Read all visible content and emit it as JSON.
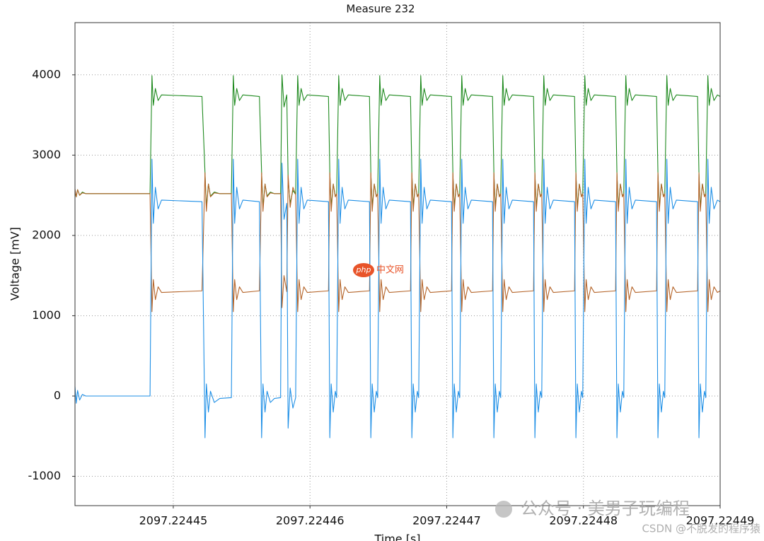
{
  "chart_data": {
    "type": "line",
    "title": "Measure 232",
    "x_label": "Time [s]",
    "y_label": "Voltage [mV]",
    "xlim": [
      2097.22444281,
      2097.22449
    ],
    "xticks": [
      2097.22445,
      2097.22446,
      2097.22447,
      2097.22448,
      2097.22449
    ],
    "ylim": [
      -1365,
      4650
    ],
    "yticks": [
      -1000,
      0,
      1000,
      2000,
      3000,
      4000
    ],
    "grid": true,
    "watermarks": [
      "php",
      "中文网",
      "公众号 · 美男子玩编程",
      "CSDN @不脱发的程序猿"
    ],
    "x": [
      2097.22444281,
      2097.2244429,
      2097.224443,
      2097.22444315,
      2097.22444335,
      2097.2244436,
      2097.2244483,
      2097.22444844,
      2097.22444854,
      2097.22444869,
      2097.22444889,
      2097.22444914,
      2097.2244521,
      2097.22445232,
      2097.22445242,
      2097.22445257,
      2097.22445272,
      2097.224453,
      2097.2244534,
      2097.22445425,
      2097.22445439,
      2097.22445449,
      2097.22445464,
      2097.22445484,
      2097.22445509,
      2097.2244563,
      2097.22445646,
      2097.22445656,
      2097.22445671,
      2097.22445686,
      2097.2244571,
      2097.2244574,
      2097.22445785,
      2097.22445795,
      2097.2244581,
      2097.2244583,
      2097.2244584,
      2097.22445855,
      2097.22445875,
      2097.22445895,
      2097.2244591,
      2097.2244592,
      2097.22445935,
      2097.22445955,
      2097.2244598,
      2097.22446135,
      2097.22446145,
      2097.22446155,
      2097.2244617,
      2097.22446185,
      2097.22446195,
      2097.2244621,
      2097.2244622,
      2097.22446235,
      2097.22446255,
      2097.2244628,
      2097.22446435,
      2097.22446445,
      2097.22446455,
      2097.2244647,
      2097.22446485,
      2097.22446495,
      2097.2244651,
      2097.2244652,
      2097.22446535,
      2097.22446555,
      2097.2244658,
      2097.22446735,
      2097.22446745,
      2097.22446755,
      2097.2244677,
      2097.22446785,
      2097.22446795,
      2097.2244681,
      2097.2244682,
      2097.22446835,
      2097.22446855,
      2097.2244688,
      2097.22447035,
      2097.22447045,
      2097.22447055,
      2097.2244707,
      2097.22447085,
      2097.22447095,
      2097.2244711,
      2097.2244712,
      2097.22447135,
      2097.22447155,
      2097.2244718,
      2097.22447335,
      2097.22447345,
      2097.22447355,
      2097.2244737,
      2097.22447385,
      2097.22447395,
      2097.2244741,
      2097.2244742,
      2097.22447435,
      2097.22447455,
      2097.2244748,
      2097.22447635,
      2097.22447645,
      2097.22447655,
      2097.2244767,
      2097.22447685,
      2097.22447695,
      2097.2244771,
      2097.2244772,
      2097.22447735,
      2097.22447755,
      2097.2244778,
      2097.22447935,
      2097.22447945,
      2097.22447955,
      2097.2244797,
      2097.22447985,
      2097.22447995,
      2097.2244801,
      2097.2244802,
      2097.22448035,
      2097.22448055,
      2097.2244808,
      2097.22448235,
      2097.22448245,
      2097.22448255,
      2097.2244827,
      2097.22448285,
      2097.22448295,
      2097.2244831,
      2097.2244832,
      2097.22448335,
      2097.22448355,
      2097.2244838,
      2097.22448535,
      2097.22448545,
      2097.22448555,
      2097.2244857,
      2097.22448585,
      2097.22448595,
      2097.2244861,
      2097.2244862,
      2097.22448635,
      2097.22448655,
      2097.2244868,
      2097.22448835,
      2097.22448845,
      2097.22448855,
      2097.2244887,
      2097.22448885,
      2097.22448895,
      2097.2244891,
      2097.2244892,
      2097.22448935,
      2097.22448955,
      2097.2244898,
      2097.22449
    ],
    "series": [
      {
        "color": "#1f8a1f",
        "values": [
          2540,
          2480,
          2570,
          2500,
          2540,
          2520,
          2520,
          3990,
          3620,
          3830,
          3680,
          3750,
          3730,
          2780,
          2350,
          2640,
          2490,
          2540,
          2520,
          2520,
          3990,
          3620,
          3830,
          3680,
          3750,
          3730,
          2780,
          2350,
          2640,
          2490,
          2540,
          2520,
          2520,
          4000,
          3600,
          3750,
          2700,
          2400,
          2560,
          2510,
          3990,
          3620,
          3830,
          3680,
          3750,
          3730,
          2780,
          2350,
          2640,
          2490,
          2520,
          3990,
          3620,
          3830,
          3680,
          3750,
          3730,
          2780,
          2350,
          2640,
          2490,
          2520,
          3990,
          3620,
          3830,
          3680,
          3750,
          3730,
          2780,
          2350,
          2640,
          2490,
          2520,
          3990,
          3620,
          3830,
          3680,
          3750,
          3730,
          2780,
          2350,
          2640,
          2490,
          2520,
          3990,
          3620,
          3830,
          3680,
          3750,
          3730,
          2780,
          2350,
          2640,
          2490,
          2520,
          3990,
          3620,
          3830,
          3680,
          3750,
          3730,
          2780,
          2350,
          2640,
          2490,
          2520,
          3990,
          3620,
          3830,
          3680,
          3750,
          3730,
          2780,
          2350,
          2640,
          2490,
          2520,
          3990,
          3620,
          3830,
          3680,
          3750,
          3730,
          2780,
          2350,
          2640,
          2490,
          2520,
          3990,
          3620,
          3830,
          3680,
          3750,
          3730,
          2780,
          2350,
          2640,
          2490,
          2520,
          3990,
          3620,
          3830,
          3680,
          3750,
          3730,
          2780,
          2350,
          2640,
          2490,
          2520,
          3990,
          3620,
          3830,
          3680,
          3750,
          3730
        ]
      },
      {
        "color": "#b5652a",
        "values": [
          2580,
          2480,
          2570,
          2500,
          2530,
          2520,
          2520,
          1050,
          1450,
          1200,
          1360,
          1290,
          1310,
          2780,
          2300,
          2640,
          2480,
          2530,
          2520,
          2520,
          1050,
          1450,
          1200,
          1360,
          1290,
          1310,
          2780,
          2300,
          2640,
          2480,
          2530,
          2520,
          2520,
          1100,
          1500,
          1300,
          2750,
          2350,
          2600,
          2510,
          1050,
          1450,
          1200,
          1360,
          1290,
          1310,
          2780,
          2300,
          2640,
          2480,
          2520,
          1050,
          1450,
          1200,
          1360,
          1290,
          1310,
          2780,
          2300,
          2640,
          2480,
          2520,
          1050,
          1450,
          1200,
          1360,
          1290,
          1310,
          2780,
          2300,
          2640,
          2480,
          2520,
          1050,
          1450,
          1200,
          1360,
          1290,
          1310,
          2780,
          2300,
          2640,
          2480,
          2520,
          1050,
          1450,
          1200,
          1360,
          1290,
          1310,
          2780,
          2300,
          2640,
          2480,
          2520,
          1050,
          1450,
          1200,
          1360,
          1290,
          1310,
          2780,
          2300,
          2640,
          2480,
          2520,
          1050,
          1450,
          1200,
          1360,
          1290,
          1310,
          2780,
          2300,
          2640,
          2480,
          2520,
          1050,
          1450,
          1200,
          1360,
          1290,
          1310,
          2780,
          2300,
          2640,
          2480,
          2520,
          1050,
          1450,
          1200,
          1360,
          1290,
          1310,
          2780,
          2300,
          2640,
          2480,
          2520,
          1050,
          1450,
          1200,
          1360,
          1290,
          1310,
          2780,
          2300,
          2640,
          2480,
          2520,
          1050,
          1450,
          1200,
          1360,
          1290,
          1310
        ]
      },
      {
        "color": "#1e8fe6",
        "values": [
          120,
          -90,
          70,
          -50,
          20,
          0,
          0,
          2950,
          2150,
          2600,
          2330,
          2440,
          2420,
          -520,
          150,
          -200,
          60,
          -80,
          -30,
          -20,
          2950,
          2150,
          2600,
          2330,
          2440,
          2420,
          -520,
          150,
          -200,
          60,
          -80,
          -30,
          -20,
          2900,
          2200,
          2400,
          -400,
          100,
          -150,
          -20,
          2950,
          2150,
          2600,
          2330,
          2440,
          2420,
          -520,
          150,
          -200,
          60,
          -20,
          2950,
          2150,
          2600,
          2330,
          2440,
          2420,
          -520,
          150,
          -200,
          60,
          -20,
          2950,
          2150,
          2600,
          2330,
          2440,
          2420,
          -520,
          150,
          -200,
          60,
          -20,
          2950,
          2150,
          2600,
          2330,
          2440,
          2420,
          -520,
          150,
          -200,
          60,
          -20,
          2950,
          2150,
          2600,
          2330,
          2440,
          2420,
          -520,
          150,
          -200,
          60,
          -20,
          2950,
          2150,
          2600,
          2330,
          2440,
          2420,
          -520,
          150,
          -200,
          60,
          -20,
          2950,
          2150,
          2600,
          2330,
          2440,
          2420,
          -520,
          150,
          -200,
          60,
          -20,
          2950,
          2150,
          2600,
          2330,
          2440,
          2420,
          -520,
          150,
          -200,
          60,
          -20,
          2950,
          2150,
          2600,
          2330,
          2440,
          2420,
          -520,
          150,
          -200,
          60,
          -20,
          2950,
          2150,
          2600,
          2330,
          2440,
          2420,
          -520,
          150,
          -200,
          60,
          -20,
          2950,
          2150,
          2600,
          2330,
          2440,
          2420
        ]
      }
    ]
  }
}
